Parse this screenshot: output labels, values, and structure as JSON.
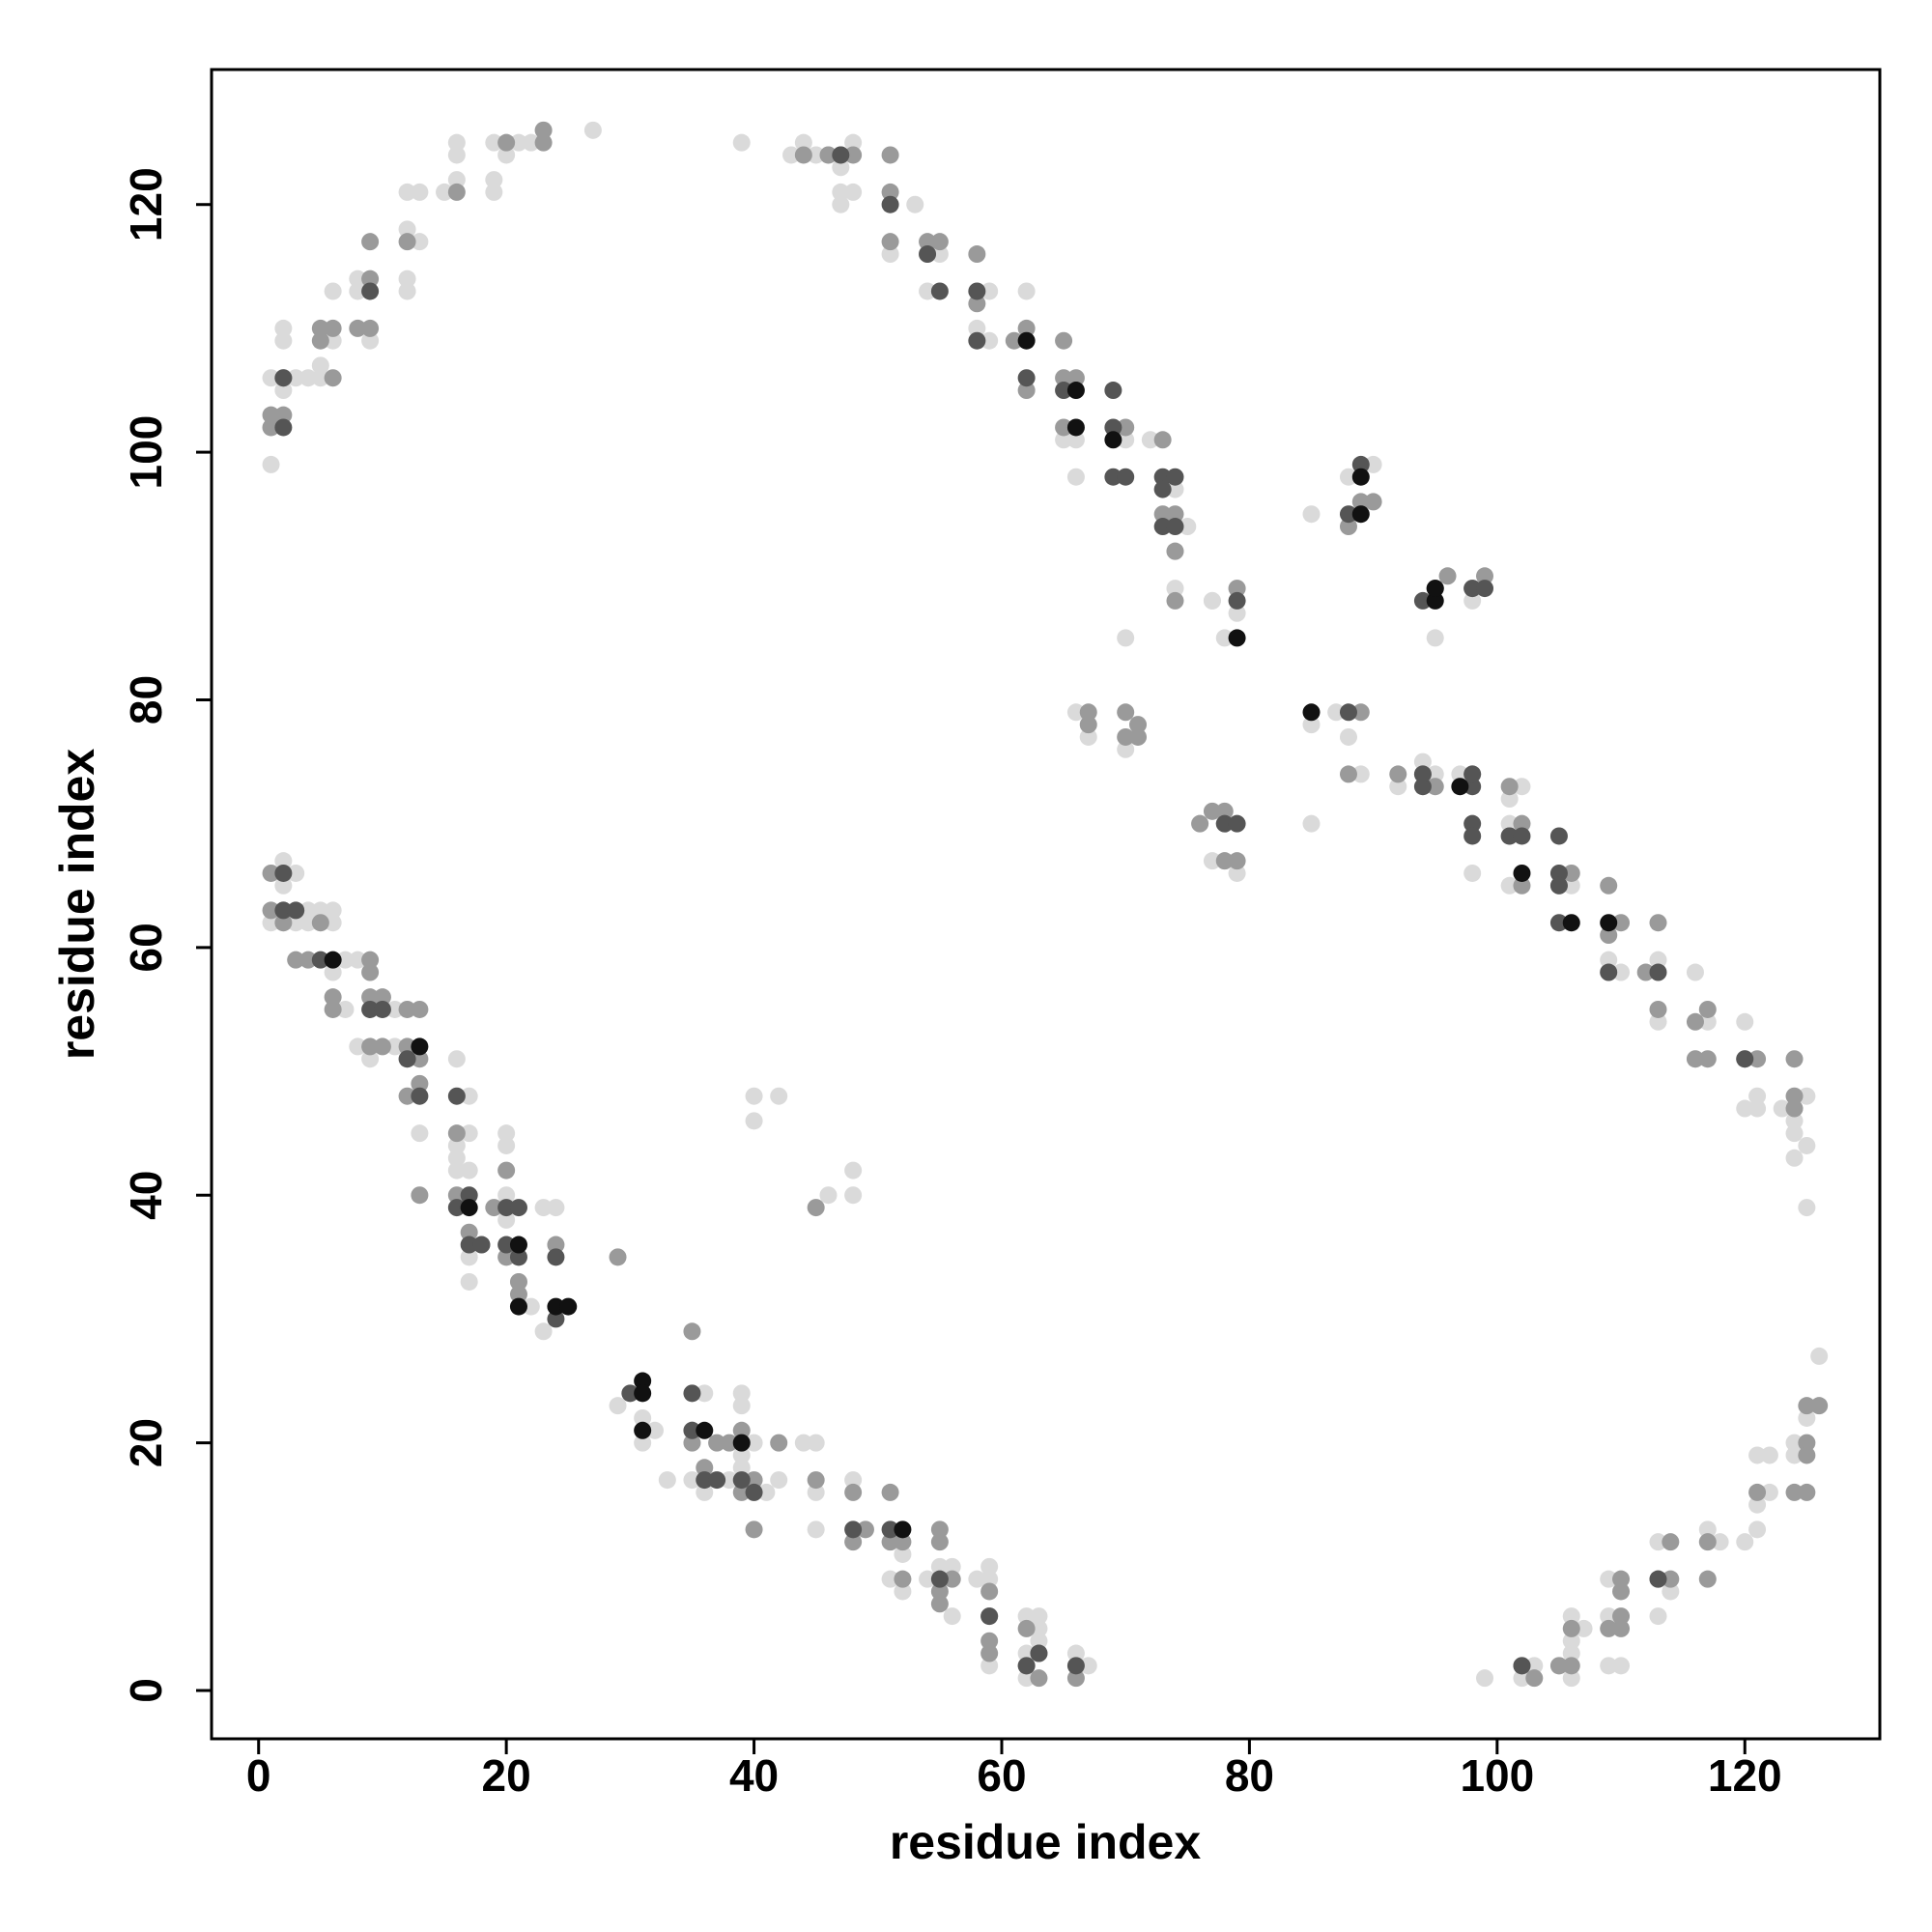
{
  "chart_data": {
    "type": "scatter",
    "xlabel": "residue index",
    "ylabel": "residue index",
    "xlim": [
      -3.8,
      130.9
    ],
    "ylim": [
      -3.9,
      130.9
    ],
    "xticks": [
      0,
      20,
      40,
      60,
      80,
      100,
      120
    ],
    "yticks": [
      0,
      20,
      40,
      60,
      80,
      100,
      120
    ],
    "grid": false,
    "series": [
      {
        "color": "#dadada",
        "x": [
          1,
          1,
          1,
          2,
          2,
          2,
          3,
          4,
          5,
          5,
          6,
          6,
          8,
          8,
          9,
          12,
          12,
          12,
          12,
          13,
          13,
          15,
          16,
          16,
          16,
          19,
          19,
          19,
          20,
          21,
          22,
          27,
          23,
          39,
          43,
          44,
          45,
          46,
          47,
          47,
          47,
          48,
          48,
          51,
          53,
          54,
          54,
          55,
          58,
          59,
          59,
          62,
          65,
          66,
          66,
          70,
          72,
          74,
          74,
          74,
          75,
          77,
          78,
          79,
          79,
          85,
          88,
          90,
          95,
          98,
          66,
          67,
          70,
          70,
          76,
          77,
          77,
          79,
          78,
          85,
          85,
          87,
          88,
          89,
          92,
          94,
          95,
          97,
          98,
          101,
          101,
          101,
          102,
          105,
          106,
          109,
          109,
          110,
          113,
          113,
          116,
          117,
          116,
          120,
          120,
          121,
          121,
          123,
          124,
          124,
          125,
          125,
          125,
          124,
          1,
          2,
          2,
          3,
          3,
          4,
          4,
          5,
          6,
          6,
          6,
          7,
          7,
          8,
          8,
          9,
          10,
          11,
          11,
          13,
          16,
          16,
          16,
          16,
          17,
          17,
          17,
          17,
          17,
          18,
          20,
          20,
          20,
          20,
          21,
          22,
          23,
          23,
          24,
          29,
          31,
          31,
          32,
          33,
          35,
          36,
          36,
          38,
          39,
          39,
          39,
          39,
          40,
          40,
          40,
          40,
          41,
          42,
          42,
          44,
          45,
          45,
          45,
          46,
          48,
          48,
          48,
          51,
          52,
          52,
          54,
          55,
          56,
          56,
          58,
          59,
          59,
          62,
          62,
          62,
          63,
          63,
          63,
          66,
          66,
          67,
          59,
          99,
          102,
          103,
          105,
          106,
          106,
          106,
          106,
          107,
          109,
          109,
          109,
          110,
          113,
          113,
          114,
          117,
          118,
          120,
          121,
          121,
          121,
          122,
          122,
          124,
          124,
          125,
          126
        ],
        "y": [
          106,
          99,
          102,
          110,
          109,
          105,
          106,
          106,
          107,
          106,
          109,
          113,
          114,
          113,
          109,
          121,
          118,
          113,
          114,
          121,
          117,
          121,
          125,
          124,
          122,
          125,
          122,
          121,
          124,
          125,
          125,
          126,
          126,
          125,
          124,
          125,
          124,
          124,
          123,
          120,
          121,
          125,
          121,
          116,
          120,
          116,
          113,
          116,
          110,
          113,
          109,
          113,
          101,
          101,
          98,
          101,
          101,
          92,
          89,
          97,
          94,
          88,
          85,
          87,
          89,
          95,
          98,
          99,
          85,
          88,
          79,
          77,
          85,
          76,
          70,
          67,
          88,
          66,
          67,
          78,
          70,
          79,
          77,
          74,
          73,
          75,
          74,
          74,
          66,
          72,
          70,
          65,
          73,
          65,
          65,
          59,
          58,
          58,
          54,
          59,
          58,
          54,
          51,
          54,
          47,
          47,
          48,
          47,
          45,
          43,
          48,
          44,
          39,
          46,
          62,
          67,
          65,
          66,
          62,
          63,
          62,
          63,
          63,
          62,
          58,
          59,
          55,
          59,
          52,
          51,
          55,
          52,
          55,
          45,
          51,
          44,
          43,
          42,
          48,
          45,
          42,
          35,
          33,
          36,
          45,
          44,
          40,
          38,
          33,
          31,
          39,
          29,
          39,
          23,
          22,
          20,
          21,
          17,
          17,
          24,
          16,
          17,
          24,
          23,
          19,
          18,
          48,
          46,
          20,
          16,
          16,
          48,
          17,
          20,
          20,
          16,
          13,
          40,
          42,
          40,
          17,
          9,
          11,
          8,
          9,
          10,
          10,
          6,
          9,
          10,
          9,
          6,
          3,
          1,
          5,
          6,
          4,
          3,
          2,
          2,
          2,
          1,
          1,
          2,
          2,
          6,
          4,
          3,
          1,
          5,
          9,
          6,
          2,
          2,
          12,
          6,
          8,
          13,
          12,
          12,
          19,
          13,
          15,
          19,
          16,
          20,
          19,
          22,
          27
        ]
      },
      {
        "color": "#9a9a9a",
        "x": [
          1,
          1,
          2,
          2,
          5,
          5,
          6,
          6,
          8,
          9,
          9,
          9,
          12,
          16,
          20,
          23,
          23,
          44,
          46,
          47,
          48,
          51,
          51,
          51,
          54,
          55,
          58,
          58,
          61,
          62,
          62,
          65,
          65,
          66,
          65,
          70,
          73,
          73,
          74,
          74,
          74,
          79,
          88,
          89,
          90,
          96,
          98,
          99,
          67,
          67,
          70,
          70,
          71,
          71,
          76,
          77,
          78,
          78,
          79,
          78,
          88,
          89,
          92,
          94,
          95,
          98,
          101,
          101,
          102,
          102,
          105,
          106,
          109,
          109,
          110,
          112,
          113,
          113,
          116,
          117,
          116,
          117,
          120,
          121,
          124,
          124,
          124,
          1,
          1,
          2,
          2,
          3,
          4,
          5,
          6,
          6,
          9,
          9,
          9,
          9,
          10,
          10,
          12,
          12,
          12,
          13,
          13,
          13,
          13,
          16,
          16,
          17,
          19,
          20,
          20,
          21,
          21,
          24,
          29,
          35,
          35,
          35,
          36,
          37,
          38,
          39,
          39,
          40,
          40,
          42,
          45,
          45,
          48,
          48,
          49,
          51,
          51,
          52,
          52,
          55,
          55,
          55,
          55,
          56,
          59,
          59,
          59,
          59,
          62,
          62,
          63,
          63,
          66,
          102,
          103,
          105,
          106,
          106,
          109,
          110,
          110,
          110,
          110,
          113,
          114,
          114,
          117,
          117,
          121,
          124,
          125,
          125,
          125,
          125,
          126
        ],
        "y": [
          103,
          102,
          103,
          106,
          110,
          109,
          110,
          106,
          110,
          114,
          117,
          110,
          117,
          121,
          125,
          125,
          126,
          124,
          124,
          124,
          124,
          124,
          121,
          117,
          117,
          117,
          116,
          112,
          109,
          110,
          105,
          109,
          106,
          106,
          102,
          102,
          101,
          95,
          95,
          92,
          88,
          89,
          94,
          96,
          96,
          90,
          89,
          90,
          79,
          78,
          79,
          77,
          78,
          77,
          70,
          71,
          71,
          70,
          67,
          67,
          74,
          79,
          74,
          74,
          73,
          74,
          73,
          69,
          70,
          65,
          65,
          66,
          65,
          61,
          62,
          58,
          62,
          55,
          54,
          55,
          51,
          51,
          51,
          51,
          51,
          48,
          47,
          66,
          63,
          63,
          62,
          59,
          59,
          62,
          56,
          55,
          59,
          58,
          56,
          52,
          52,
          56,
          55,
          52,
          48,
          55,
          51,
          49,
          40,
          45,
          40,
          37,
          39,
          42,
          35,
          33,
          32,
          36,
          35,
          29,
          21,
          20,
          18,
          20,
          20,
          21,
          16,
          13,
          17,
          20,
          39,
          17,
          16,
          12,
          13,
          16,
          12,
          12,
          9,
          13,
          12,
          8,
          7,
          9,
          8,
          6,
          4,
          3,
          5,
          2,
          3,
          1,
          1,
          2,
          1,
          2,
          5,
          2,
          5,
          9,
          8,
          6,
          5,
          9,
          12,
          9,
          12,
          9,
          16,
          16,
          16,
          20,
          19,
          23,
          23
        ]
      },
      {
        "color": "#555555",
        "x": [
          2,
          2,
          9,
          47,
          51,
          54,
          55,
          58,
          58,
          62,
          65,
          69,
          69,
          69,
          70,
          73,
          73,
          74,
          74,
          73,
          79,
          88,
          89,
          94,
          95,
          98,
          99,
          78,
          79,
          88,
          94,
          94,
          98,
          98,
          98,
          98,
          101,
          102,
          105,
          105,
          105,
          105,
          109,
          113,
          120,
          2,
          2,
          3,
          5,
          9,
          10,
          12,
          13,
          16,
          16,
          17,
          17,
          18,
          20,
          20,
          21,
          21,
          24,
          24,
          30,
          35,
          35,
          36,
          37,
          39,
          40,
          48,
          51,
          55,
          59,
          62,
          63,
          66,
          102,
          113
        ],
        "y": [
          102,
          106,
          113,
          124,
          120,
          116,
          113,
          113,
          109,
          106,
          105,
          105,
          102,
          98,
          98,
          98,
          94,
          94,
          98,
          97,
          88,
          95,
          99,
          88,
          89,
          89,
          89,
          70,
          70,
          79,
          73,
          74,
          73,
          74,
          70,
          69,
          69,
          69,
          69,
          66,
          65,
          62,
          58,
          58,
          51,
          66,
          63,
          63,
          59,
          55,
          55,
          51,
          48,
          48,
          39,
          40,
          36,
          36,
          39,
          36,
          39,
          35,
          35,
          30,
          24,
          24,
          21,
          17,
          17,
          17,
          16,
          13,
          13,
          9,
          6,
          2,
          3,
          2,
          2,
          9
        ]
      },
      {
        "color": "#111111",
        "x": [
          62,
          66,
          66,
          69,
          79,
          89,
          89,
          95,
          95,
          85,
          97,
          102,
          106,
          109,
          6,
          13,
          17,
          21,
          21,
          24,
          25,
          31,
          31,
          31,
          36,
          39,
          52
        ],
        "y": [
          109,
          105,
          102,
          101,
          85,
          98,
          95,
          88,
          89,
          79,
          73,
          66,
          62,
          62,
          59,
          52,
          39,
          36,
          31,
          31,
          31,
          25,
          24,
          21,
          21,
          20,
          13
        ]
      }
    ]
  }
}
